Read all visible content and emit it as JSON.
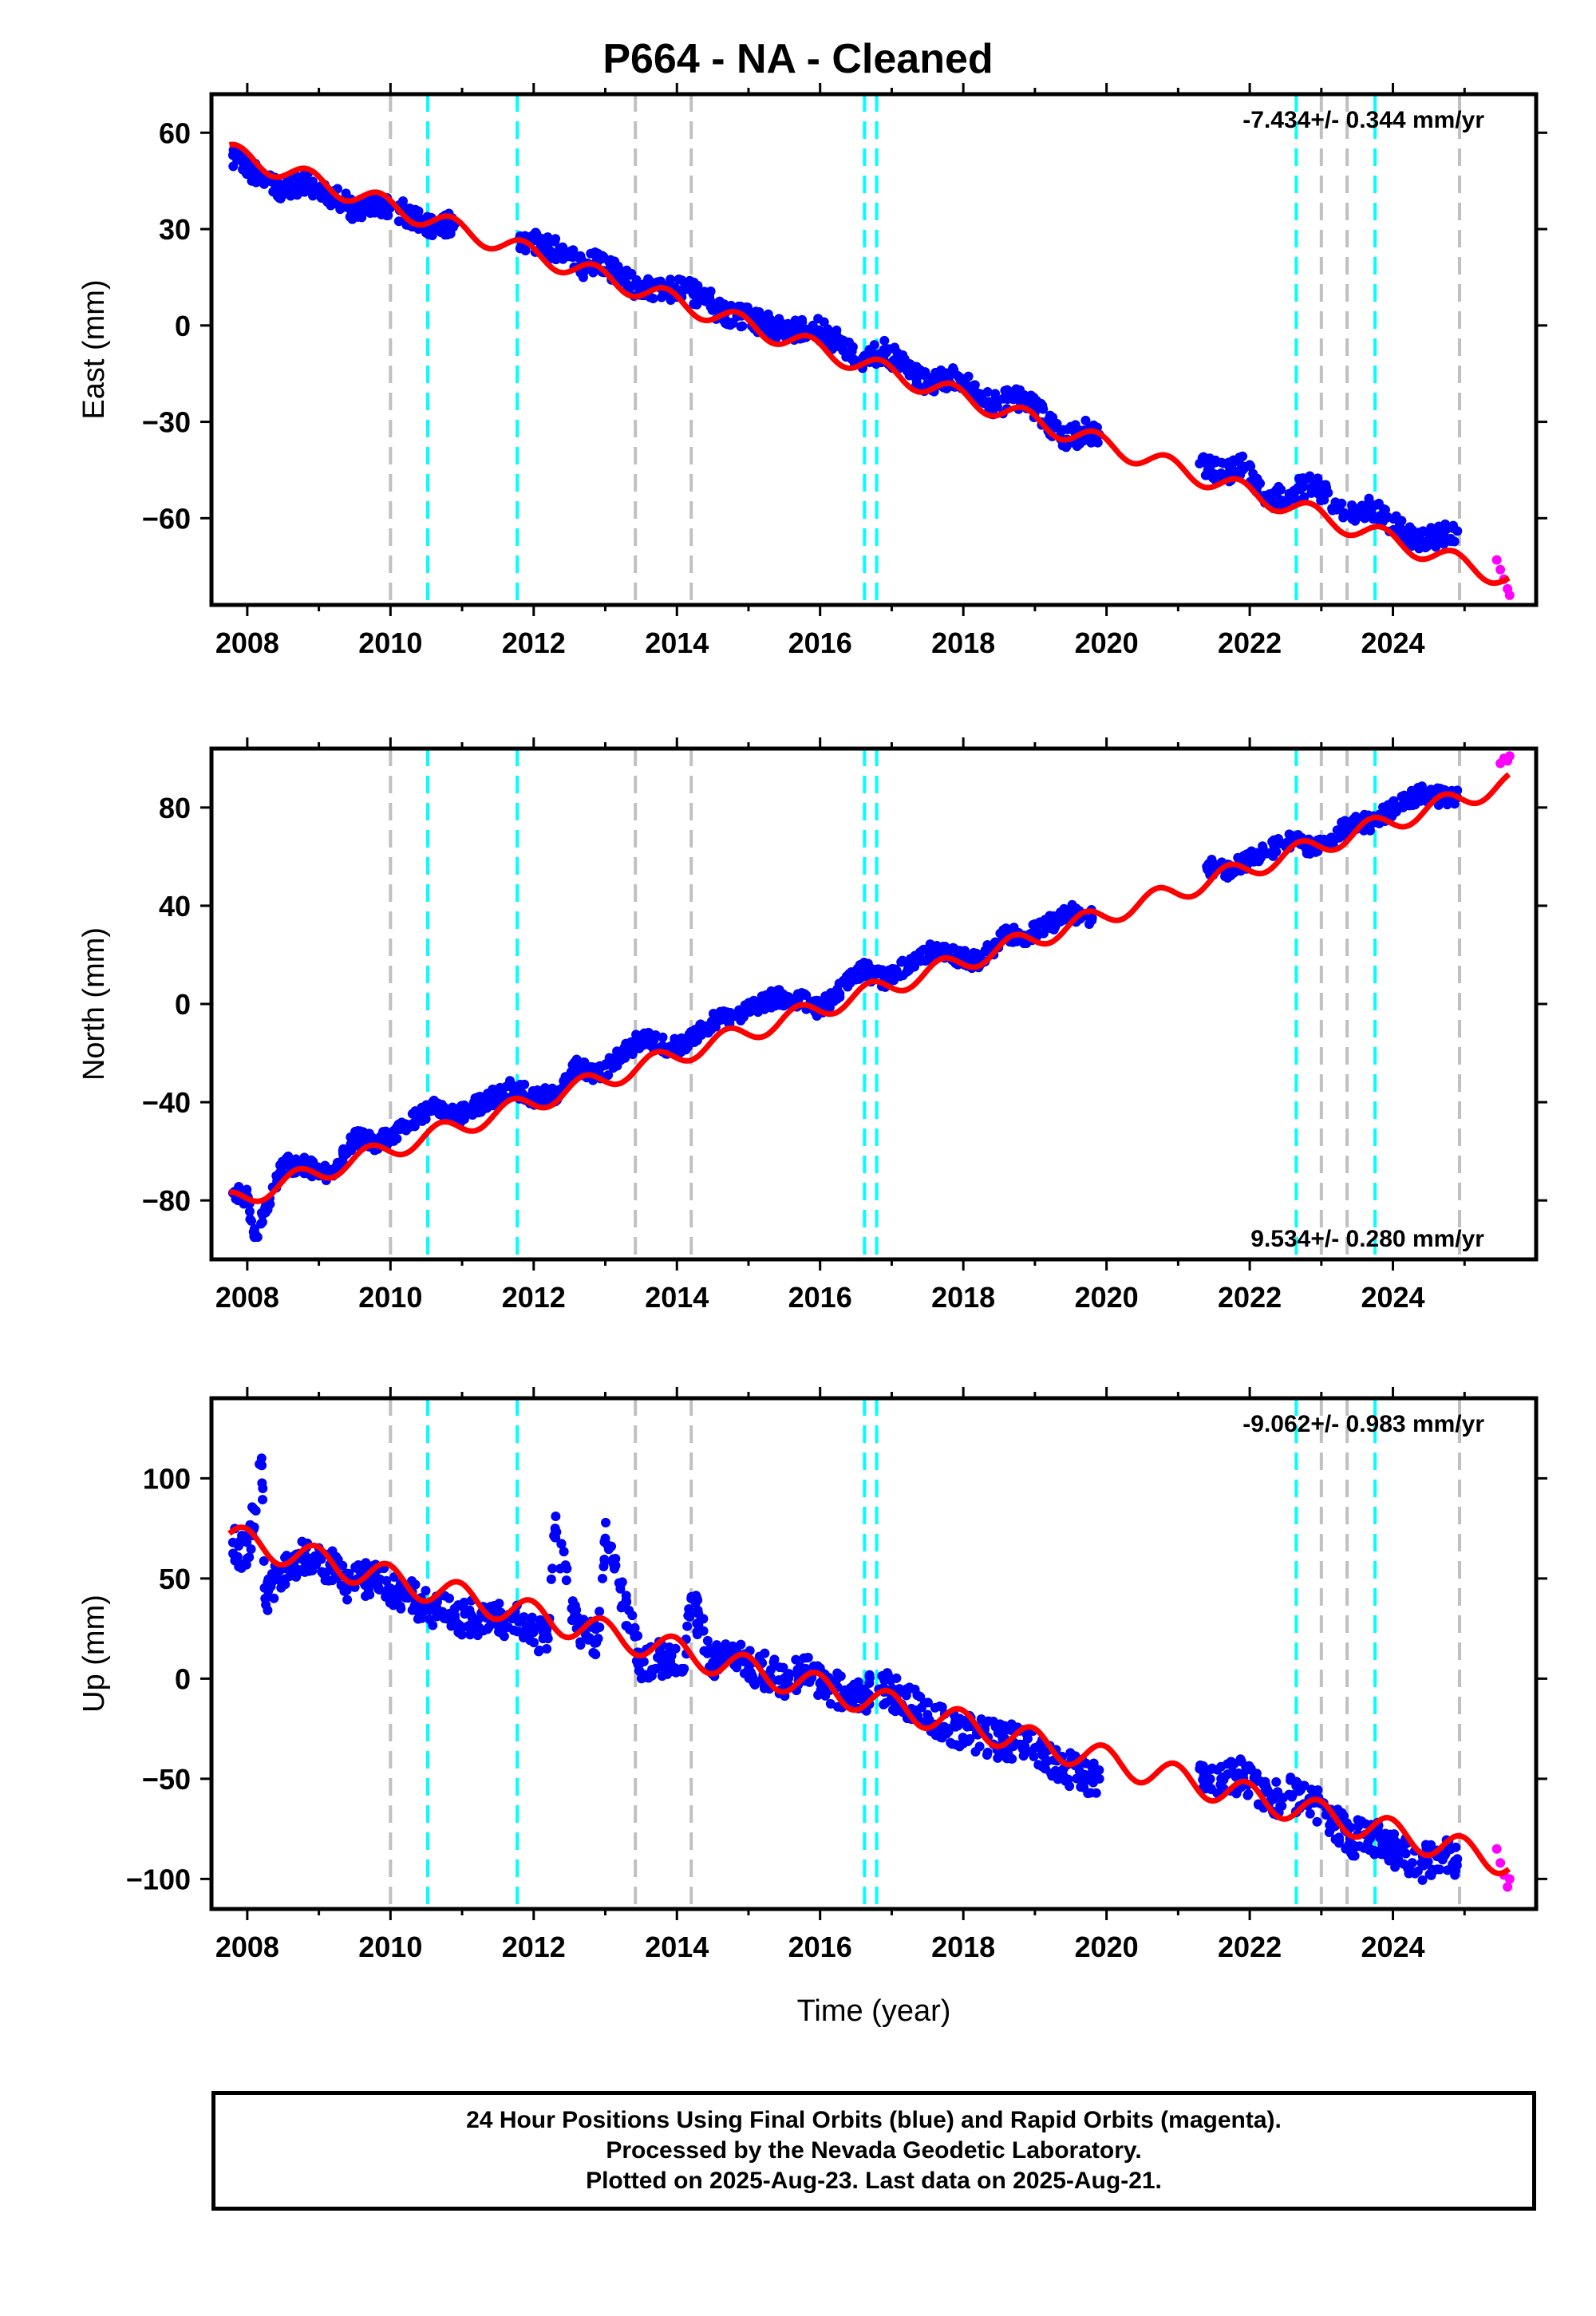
{
  "title": "P664  - NA - Cleaned",
  "footer": {
    "line1": "24 Hour Positions Using Final Orbits (blue) and Rapid Orbits (magenta).",
    "line2": "Processed by the Nevada Geodetic Laboratory.",
    "line3": "Plotted on 2025-Aug-23. Last data on 2025-Aug-21."
  },
  "colors": {
    "final_orbits": "#0000ff",
    "rapid_orbits": "#ff00ff",
    "model_fit": "#ff0000",
    "equipment_change": "#00ffff",
    "other_event": "#c0c0c0"
  },
  "event_lines": {
    "cyan": [
      2010.52,
      2011.77,
      2016.62,
      2016.79,
      2022.65,
      2023.75
    ],
    "gray": [
      2010.0,
      2013.42,
      2014.2,
      2023.0,
      2023.36,
      2024.93
    ]
  },
  "chart_data": [
    {
      "type": "scatter",
      "ylabel": "East (mm)",
      "xlabel": "",
      "xlim": [
        2007.5,
        2026.0
      ],
      "ylim": [
        -87,
        72
      ],
      "xticks": [
        "2008",
        "2010",
        "2012",
        "2014",
        "2016",
        "2018",
        "2020",
        "2022",
        "2024"
      ],
      "yticks": [
        "60",
        "30",
        "0",
        "−30",
        "−60"
      ],
      "ytick_values": [
        60,
        30,
        0,
        -30,
        -60
      ],
      "rate_label": "-7.434+/- 0.344 mm/yr",
      "rate_position": "top-right",
      "model": {
        "intercept_2008": 52,
        "rate": -7.434,
        "annual_amplitude": 3,
        "phase": 0.4
      },
      "series": [
        {
          "name": "Final Orbits",
          "x": [
            2007.8,
            2008.0,
            2008.2,
            2008.5,
            2008.8,
            2009.0,
            2009.3,
            2009.5,
            2009.8,
            2010.0,
            2010.6,
            2010.9,
            2011.8,
            2012.1,
            2012.4,
            2012.7,
            2012.9,
            2013.5,
            2013.8,
            2014.1,
            2014.4,
            2014.6,
            2014.9,
            2015.3,
            2015.6,
            2015.9,
            2016.3,
            2016.6,
            2016.9,
            2017.5,
            2017.8,
            2018.1,
            2018.4,
            2018.7,
            2018.9,
            2019.4,
            2019.7,
            2019.9,
            2021.3,
            2021.6,
            2021.9,
            2022.3,
            2022.7,
            2022.9,
            2023.4,
            2023.7,
            2023.9,
            2024.3,
            2024.6,
            2024.9
          ],
          "y": [
            53,
            50,
            45,
            42,
            45,
            43,
            39,
            36,
            38,
            37,
            31,
            32,
            27,
            25,
            23,
            18,
            20,
            11,
            11,
            11,
            9,
            4,
            3,
            0,
            -2,
            0,
            -6,
            -10,
            -8,
            -18,
            -16,
            -19,
            -25,
            -23,
            -23,
            -36,
            -33,
            -34,
            -43,
            -46,
            -44,
            -54,
            -51,
            -50,
            -59,
            -57,
            -60,
            -67,
            -66,
            -64
          ]
        },
        {
          "name": "Rapid Orbits",
          "x": [
            2025.45,
            2025.5,
            2025.55,
            2025.6,
            2025.63
          ],
          "y": [
            -73,
            -76,
            -79,
            -82,
            -84
          ]
        }
      ]
    },
    {
      "type": "scatter",
      "ylabel": "North (mm)",
      "xlabel": "",
      "xlim": [
        2007.5,
        2026.0
      ],
      "ylim": [
        -104,
        104
      ],
      "xticks": [
        "2008",
        "2010",
        "2012",
        "2014",
        "2016",
        "2018",
        "2020",
        "2022",
        "2024"
      ],
      "yticks": [
        "80",
        "40",
        "0",
        "−40",
        "−80"
      ],
      "ytick_values": [
        80,
        40,
        0,
        -40,
        -80
      ],
      "rate_label": "9.534+/- 0.280 mm/yr",
      "rate_position": "bottom-right",
      "model": {
        "intercept_2008": -78,
        "rate": 9.534,
        "annual_amplitude": 4,
        "phase": 0.55
      },
      "series": [
        {
          "name": "Final Orbits",
          "x": [
            2007.8,
            2008.0,
            2008.1,
            2008.5,
            2008.8,
            2009.2,
            2009.5,
            2009.8,
            2010.6,
            2010.9,
            2011.7,
            2012.0,
            2012.3,
            2012.6,
            2012.9,
            2013.5,
            2013.8,
            2014.1,
            2014.5,
            2014.8,
            2015.4,
            2015.7,
            2016.0,
            2016.6,
            2016.9,
            2017.6,
            2017.9,
            2018.2,
            2018.6,
            2018.9,
            2019.5,
            2019.8,
            2021.4,
            2021.7,
            2022.2,
            2022.6,
            2022.9,
            2023.4,
            2023.7,
            2024.4,
            2024.7,
            2024.9
          ],
          "y": [
            -77,
            -79,
            -95,
            -65,
            -66,
            -70,
            -54,
            -57,
            -42,
            -46,
            -34,
            -38,
            -37,
            -26,
            -29,
            -14,
            -17,
            -17,
            -7,
            -5,
            3,
            2,
            -2,
            14,
            10,
            22,
            19,
            17,
            28,
            28,
            37,
            35,
            56,
            54,
            62,
            67,
            63,
            73,
            74,
            86,
            84,
            84
          ]
        },
        {
          "name": "Rapid Orbits",
          "x": [
            2025.5,
            2025.55,
            2025.6,
            2025.63
          ],
          "y": [
            98,
            100,
            99,
            101
          ]
        }
      ]
    },
    {
      "type": "scatter",
      "ylabel": "Up (mm)",
      "xlabel": "Time (year)",
      "xlim": [
        2007.5,
        2026.0
      ],
      "ylim": [
        -115,
        140
      ],
      "xticks": [
        "2008",
        "2010",
        "2012",
        "2014",
        "2016",
        "2018",
        "2020",
        "2022",
        "2024"
      ],
      "yticks": [
        "100",
        "50",
        "0",
        "−50",
        "−100"
      ],
      "ytick_values": [
        100,
        50,
        0,
        -50,
        -100
      ],
      "rate_label": "-9.062+/- 0.983 mm/yr",
      "rate_position": "top-right",
      "model": {
        "intercept_2008": 68,
        "rate": -9.062,
        "annual_amplitude": 7,
        "phase": 0.3
      },
      "series": [
        {
          "name": "Final Orbits",
          "x": [
            2007.8,
            2008.0,
            2008.2,
            2008.25,
            2008.5,
            2008.8,
            2009.2,
            2009.4,
            2009.7,
            2010.0,
            2010.6,
            2010.9,
            2011.7,
            2011.9,
            2012.2,
            2012.3,
            2012.6,
            2012.9,
            2013.0,
            2013.5,
            2013.8,
            2014.1,
            2014.2,
            2014.5,
            2014.8,
            2015.5,
            2015.8,
            2016.1,
            2016.6,
            2016.9,
            2017.5,
            2017.8,
            2018.2,
            2018.6,
            2018.9,
            2019.4,
            2019.7,
            2019.9,
            2021.3,
            2021.6,
            2021.9,
            2022.3,
            2022.6,
            2022.9,
            2023.4,
            2023.7,
            2024.0,
            2024.4,
            2024.7,
            2024.9
          ],
          "y": [
            68,
            60,
            110,
            40,
            55,
            62,
            55,
            48,
            50,
            45,
            35,
            30,
            30,
            25,
            20,
            75,
            25,
            20,
            70,
            8,
            10,
            5,
            40,
            8,
            10,
            0,
            5,
            -5,
            -8,
            -5,
            -18,
            -25,
            -28,
            -32,
            -30,
            -45,
            -48,
            -50,
            -45,
            -50,
            -48,
            -60,
            -58,
            -62,
            -80,
            -78,
            -85,
            -92,
            -88,
            -90
          ]
        },
        {
          "name": "Rapid Orbits",
          "x": [
            2025.45,
            2025.5,
            2025.55,
            2025.6,
            2025.63
          ],
          "y": [
            -85,
            -92,
            -98,
            -104,
            -100
          ]
        }
      ]
    }
  ]
}
